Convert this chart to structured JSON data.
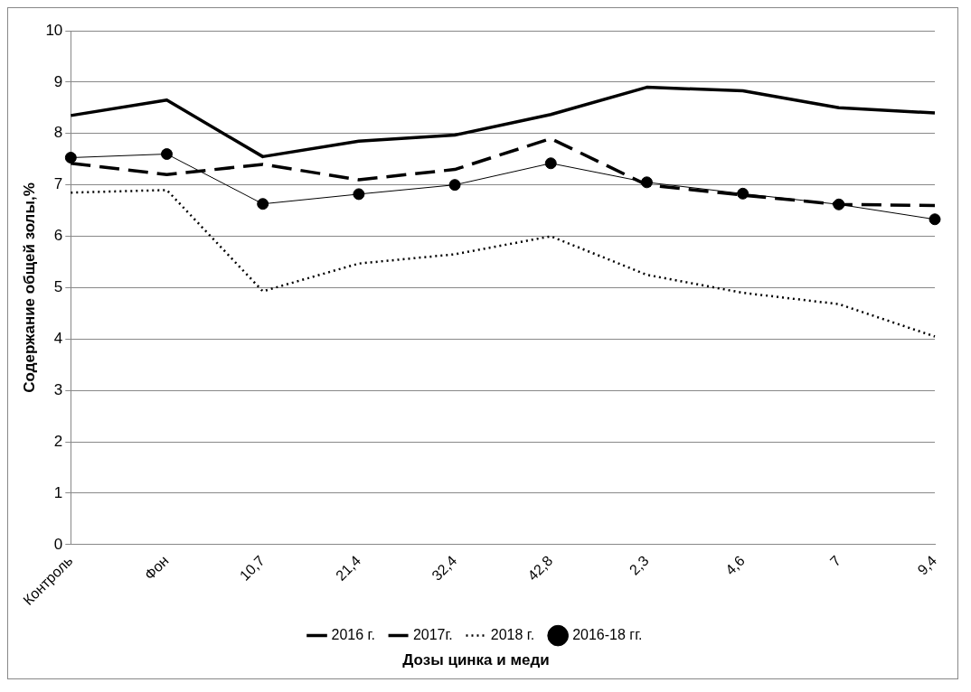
{
  "chart_data": {
    "type": "line",
    "xlabel": "Дозы цинка и меди",
    "ylabel": "Содержание общей золы,%",
    "categories": [
      "Контроль",
      "Фон",
      "10,7",
      "21,4",
      "32,4",
      "42,8",
      "2,3",
      "4,6",
      "7",
      "9,4"
    ],
    "series": [
      {
        "name": "2016 г.",
        "color": "#000000",
        "line_style": "solid",
        "marker": "none",
        "values": [
          8.35,
          8.65,
          7.55,
          7.85,
          7.97,
          8.37,
          8.9,
          8.83,
          8.5,
          8.4
        ]
      },
      {
        "name": "2017г.",
        "color": "#000000",
        "line_style": "dashed",
        "marker": "none",
        "values": [
          7.42,
          7.2,
          7.4,
          7.1,
          7.3,
          7.9,
          7.0,
          6.8,
          6.62,
          6.6
        ]
      },
      {
        "name": "2018 г.",
        "color": "#000000",
        "line_style": "dotted",
        "marker": "none",
        "values": [
          6.85,
          6.9,
          4.93,
          5.47,
          5.65,
          6.0,
          5.25,
          4.9,
          4.68,
          4.05
        ]
      },
      {
        "name": "2016-18 гг.",
        "color": "#000000",
        "line_style": "solid",
        "marker": "circle",
        "values": [
          7.53,
          7.6,
          6.63,
          6.82,
          7.0,
          7.42,
          7.05,
          6.83,
          6.62,
          6.33
        ]
      }
    ],
    "ylim": [
      0,
      10
    ],
    "yticks": [
      0,
      1,
      2,
      3,
      4,
      5,
      6,
      7,
      8,
      9,
      10
    ],
    "grid": "y",
    "legend": "bottom"
  }
}
